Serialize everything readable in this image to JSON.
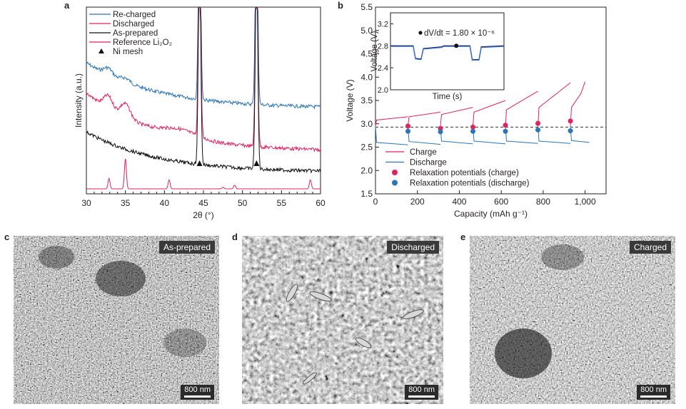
{
  "panels": {
    "a": {
      "letter": "a"
    },
    "b": {
      "letter": "b"
    },
    "c": {
      "letter": "c",
      "tag": "As-prepared",
      "scale": "800 nm"
    },
    "d": {
      "letter": "d",
      "tag": "Discharged",
      "scale": "800 nm"
    },
    "e": {
      "letter": "e",
      "tag": "Charged",
      "scale": "800 nm"
    }
  },
  "chart_data": [
    {
      "type": "line",
      "xlabel": "2θ (°)",
      "ylabel": "Intensity (a.u.)",
      "xlim": [
        30,
        60
      ],
      "xticks": [
        "30",
        "35",
        "40",
        "45",
        "50",
        "55",
        "60"
      ],
      "legend": {
        "placement": "top-left",
        "entries": [
          {
            "name": "Re-charged",
            "color": "#2e75b6"
          },
          {
            "name": "Discharged",
            "color": "#e0245e"
          },
          {
            "name": "As-prepared",
            "color": "#111111"
          },
          {
            "name": "Reference Li₂O₂",
            "color": "#e0245e"
          },
          {
            "name": "Ni mesh",
            "marker": "triangle",
            "color": "#111111"
          }
        ]
      },
      "series": [
        {
          "name": "Re-charged",
          "color": "#2e75b6"
        },
        {
          "name": "Discharged",
          "color": "#e0245e"
        },
        {
          "name": "As-prepared",
          "color": "#111111"
        },
        {
          "name": "Reference Li₂O₂",
          "color": "#e0245e",
          "peaks": [
            [
              32.9,
              0.35
            ],
            [
              35.0,
              1.0
            ],
            [
              40.6,
              0.3
            ],
            [
              47.5,
              0.05
            ],
            [
              49.0,
              0.12
            ],
            [
              58.7,
              0.3
            ]
          ]
        }
      ],
      "ni_mesh_peaks": [
        44.5,
        51.8
      ]
    },
    {
      "type": "line",
      "xlabel": "Capacity (mAh g⁻¹)",
      "ylabel": "Voltage (V)",
      "xlim": [
        0,
        1100
      ],
      "ylim": [
        1.5,
        5.5
      ],
      "xticks": [
        "0",
        "200",
        "400",
        "600",
        "800",
        "1,000"
      ],
      "yticks": [
        "1.5",
        "2.0",
        "2.5",
        "3.0",
        "3.5",
        "4.0",
        "4.5",
        "5.0",
        "5.5"
      ],
      "reference_line": 2.93,
      "legend": {
        "placement": "bottom-left",
        "entries": [
          {
            "name": "Charge",
            "color": "#e0245e",
            "marker": "line"
          },
          {
            "name": "Discharge",
            "color": "#2e75b6",
            "marker": "line"
          },
          {
            "name": "Relaxation potentials (charge)",
            "color": "#e0245e",
            "marker": "dot"
          },
          {
            "name": "Relaxation potentials (discharge)",
            "color": "#2e75b6",
            "marker": "dot"
          }
        ]
      },
      "series": [
        {
          "name": "Charge",
          "color": "#e0245e",
          "segments": [
            {
              "x": [
                0,
                5,
                155
              ],
              "y": [
                2.95,
                3.08,
                3.15
              ]
            },
            {
              "x": [
                155,
                160,
                310
              ],
              "y": [
                2.95,
                3.15,
                3.25
              ]
            },
            {
              "x": [
                310,
                315,
                465
              ],
              "y": [
                2.95,
                3.2,
                3.35
              ]
            },
            {
              "x": [
                465,
                470,
                620
              ],
              "y": [
                2.95,
                3.25,
                3.5
              ]
            },
            {
              "x": [
                620,
                625,
                775
              ],
              "y": [
                2.95,
                3.3,
                3.7
              ]
            },
            {
              "x": [
                775,
                780,
                930
              ],
              "y": [
                2.95,
                3.35,
                3.88
              ]
            },
            {
              "x": [
                930,
                935,
                980,
                1000
              ],
              "y": [
                2.95,
                3.35,
                3.65,
                3.9
              ]
            }
          ]
        },
        {
          "name": "Discharge",
          "color": "#2e75b6",
          "segments": [
            {
              "x": [
                0,
                5,
                155
              ],
              "y": [
                2.95,
                2.6,
                2.55
              ]
            },
            {
              "x": [
                155,
                160,
                310
              ],
              "y": [
                2.95,
                2.62,
                2.56
              ]
            },
            {
              "x": [
                310,
                315,
                465
              ],
              "y": [
                2.95,
                2.63,
                2.57
              ]
            },
            {
              "x": [
                465,
                470,
                620
              ],
              "y": [
                2.95,
                2.63,
                2.57
              ]
            },
            {
              "x": [
                620,
                625,
                775
              ],
              "y": [
                2.95,
                2.63,
                2.58
              ]
            },
            {
              "x": [
                775,
                780,
                930
              ],
              "y": [
                2.95,
                2.63,
                2.58
              ]
            },
            {
              "x": [
                930,
                935,
                1020
              ],
              "y": [
                2.95,
                2.64,
                2.6
              ]
            }
          ]
        },
        {
          "name": "Relaxation potentials (charge)",
          "color": "#e0245e",
          "x": [
            155,
            310,
            465,
            620,
            775,
            930
          ],
          "y": [
            2.95,
            2.9,
            2.93,
            2.97,
            3.01,
            3.06
          ]
        },
        {
          "name": "Relaxation potentials (discharge)",
          "color": "#2e75b6",
          "x": [
            155,
            310,
            465,
            620,
            775,
            930
          ],
          "y": [
            2.84,
            2.83,
            2.84,
            2.84,
            2.87,
            2.85
          ]
        }
      ],
      "inset": {
        "type": "line",
        "xlabel": "Time (s)",
        "ylabel": "Voltage (V)",
        "ylim": [
          2.0,
          3.4
        ],
        "yticks": [
          "2.0",
          "2.4",
          "2.8",
          "3.2"
        ],
        "annotation": "dV/dt = 1.80 × 10⁻⁶",
        "series": [
          {
            "color": "#1a1a6e",
            "x": [
              0,
              20,
              22,
              27,
              29,
              45,
              47,
              58,
              70,
              72,
              78,
              80,
              100
            ],
            "y": [
              2.8,
              2.8,
              2.57,
              2.56,
              2.75,
              2.78,
              2.8,
              2.8,
              2.8,
              2.55,
              2.55,
              2.78,
              2.8
            ]
          },
          {
            "color": "#3a73c4",
            "x": [
              0,
              20,
              22,
              27,
              29,
              45,
              47,
              58,
              70,
              72,
              78,
              80,
              100
            ],
            "y": [
              2.79,
              2.79,
              2.56,
              2.55,
              2.74,
              2.77,
              2.79,
              2.79,
              2.79,
              2.54,
              2.54,
              2.77,
              2.79
            ]
          }
        ],
        "marker": {
          "x": 58,
          "y": 2.8
        }
      }
    }
  ]
}
